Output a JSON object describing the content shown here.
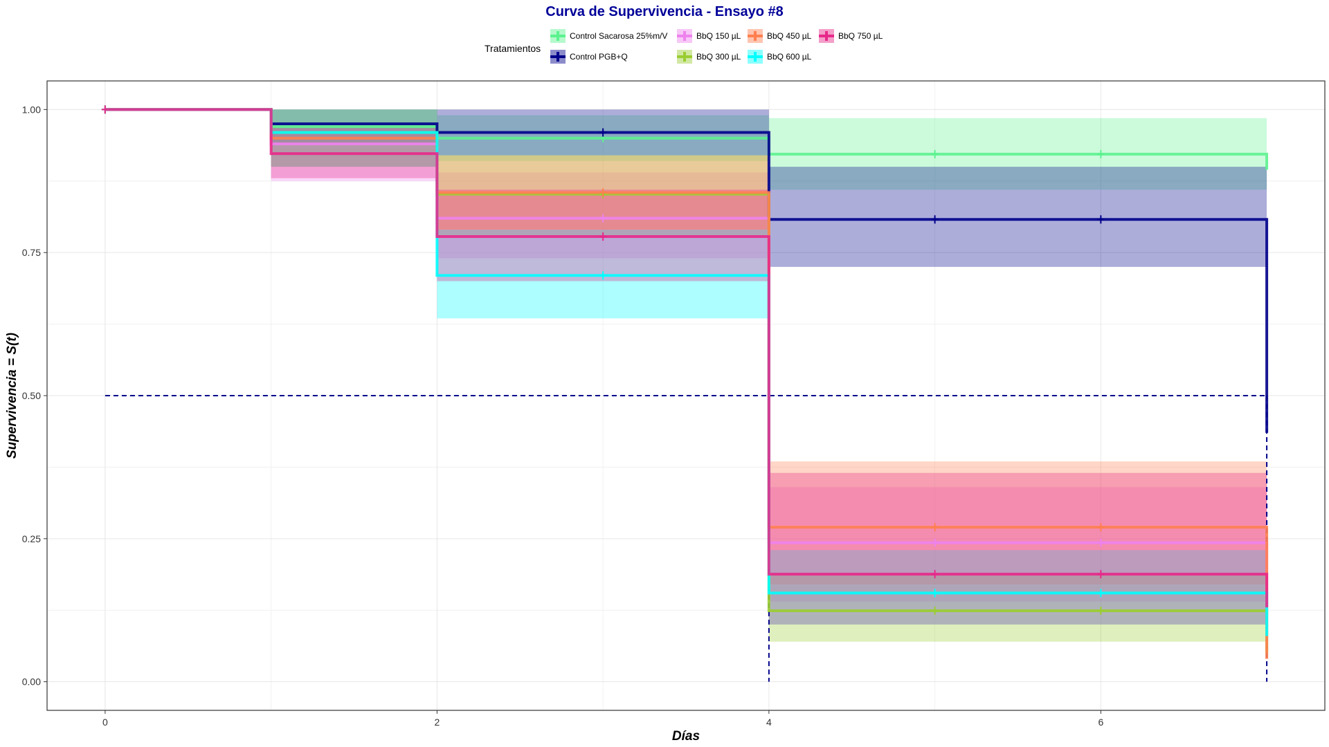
{
  "chart_data": {
    "type": "line",
    "title": "Curva de Supervivencia - Ensayo #8",
    "xlabel": "Días",
    "ylabel": "Supervivencia = S(t)",
    "xlim": [
      -0.35,
      7.35
    ],
    "ylim": [
      -0.05,
      1.05
    ],
    "x_ticks": [
      0,
      2,
      4,
      6
    ],
    "x_tick_labels": [
      "0",
      "2",
      "4",
      "6"
    ],
    "y_ticks": [
      0,
      0.25,
      0.5,
      0.75,
      1.0
    ],
    "y_tick_labels": [
      "0.00",
      "0.25",
      "0.50",
      "0.75",
      "1.00"
    ],
    "grid": true,
    "legend_title": "Tratamientos",
    "legend_position": "top",
    "median_reference": {
      "y": 0.5,
      "x_end": 7,
      "drops_at_x": [
        4,
        7
      ],
      "color": "#00008b"
    },
    "series": [
      {
        "name": "Control  Sacarosa 25%m/V",
        "color": "#5cf28f",
        "steps": [
          [
            0,
            1.0
          ],
          [
            1,
            0.97
          ],
          [
            2,
            0.95
          ],
          [
            4,
            0.922
          ],
          [
            7,
            0.895
          ]
        ],
        "lower": [
          1.0,
          0.94,
          0.91,
          0.86,
          0.86
        ],
        "upper": [
          1.0,
          1.0,
          0.99,
          0.985,
          0.985
        ],
        "censor_x": [
          0,
          3,
          5,
          6
        ]
      },
      {
        "name": "Control  PGB+Q",
        "color": "#00008b",
        "steps": [
          [
            0,
            1.0
          ],
          [
            1,
            0.975
          ],
          [
            2,
            0.96
          ],
          [
            4,
            0.808
          ],
          [
            7,
            0.435
          ]
        ],
        "lower": [
          1.0,
          0.94,
          0.92,
          0.725,
          0.725
        ],
        "upper": [
          1.0,
          1.0,
          1.0,
          0.9,
          0.9
        ],
        "censor_x": [
          0,
          3,
          5,
          6
        ]
      },
      {
        "name": "BbQ 150 µL",
        "color": "#ee82ee",
        "steps": [
          [
            0,
            1.0
          ],
          [
            1,
            0.94
          ],
          [
            2,
            0.81
          ],
          [
            4,
            0.243
          ],
          [
            7,
            0.07
          ]
        ],
        "lower": [
          1.0,
          0.875,
          0.74,
          0.14,
          0.14
        ],
        "upper": [
          1.0,
          1.0,
          0.89,
          0.34,
          0.34
        ],
        "censor_x": [
          0,
          3,
          5,
          6
        ]
      },
      {
        "name": "BbQ 300 µL",
        "color": "#9acd32",
        "steps": [
          [
            0,
            1.0
          ],
          [
            1,
            0.96
          ],
          [
            2,
            0.852
          ],
          [
            4,
            0.124
          ],
          [
            7,
            0.05
          ]
        ],
        "lower": [
          1.0,
          0.9,
          0.78,
          0.07,
          0.07
        ],
        "upper": [
          1.0,
          1.0,
          0.92,
          0.19,
          0.19
        ],
        "censor_x": [
          0,
          3,
          5,
          6
        ]
      },
      {
        "name": "BbQ 450 µL",
        "color": "#ff7f50",
        "steps": [
          [
            0,
            1.0
          ],
          [
            1,
            0.95
          ],
          [
            2,
            0.855
          ],
          [
            4,
            0.27
          ],
          [
            7,
            0.04
          ]
        ],
        "lower": [
          1.0,
          0.9,
          0.79,
          0.17,
          0.17
        ],
        "upper": [
          1.0,
          1.0,
          0.92,
          0.385,
          0.385
        ],
        "censor_x": [
          0,
          3,
          5,
          6
        ]
      },
      {
        "name": "BbQ 600 µL",
        "color": "#00ffff",
        "steps": [
          [
            0,
            1.0
          ],
          [
            1,
            0.96
          ],
          [
            2,
            0.71
          ],
          [
            4,
            0.155
          ],
          [
            7,
            0.08
          ]
        ],
        "lower": [
          1.0,
          0.9,
          0.635,
          0.1,
          0.1
        ],
        "upper": [
          1.0,
          1.0,
          0.79,
          0.23,
          0.23
        ],
        "censor_x": [
          0,
          3,
          5,
          6
        ]
      },
      {
        "name": "BbQ 750 µL",
        "color": "#e7298a",
        "steps": [
          [
            0,
            1.0
          ],
          [
            1,
            0.923
          ],
          [
            2,
            0.778
          ],
          [
            4,
            0.188
          ],
          [
            7,
            0.13
          ]
        ],
        "lower": [
          1.0,
          0.88,
          0.7,
          0.1,
          0.1
        ],
        "upper": [
          1.0,
          0.97,
          0.86,
          0.365,
          0.365
        ],
        "censor_x": [
          0,
          3,
          5,
          6
        ]
      }
    ]
  }
}
